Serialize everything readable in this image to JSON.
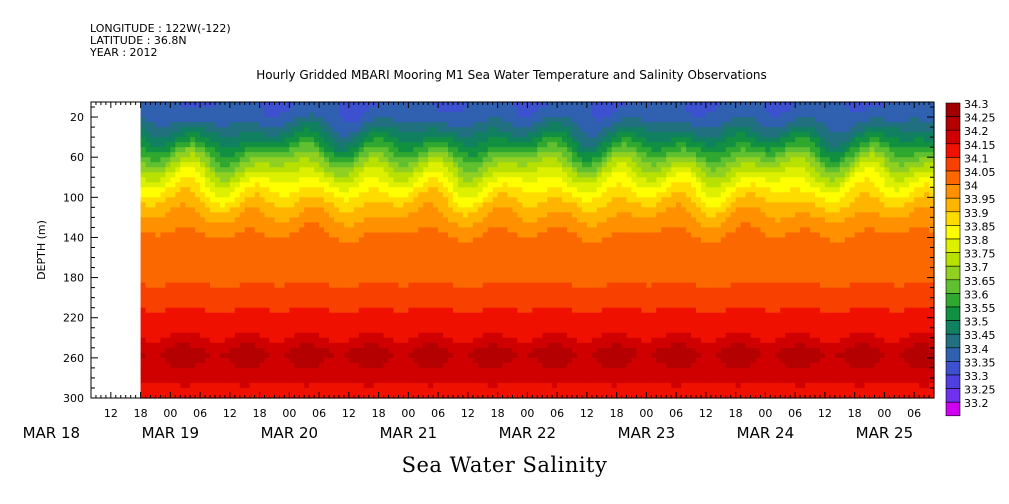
{
  "header": {
    "longitude": "LONGITUDE : 122W(-122)",
    "latitude": "LATITUDE : 36.8N",
    "year": "YEAR : 2012"
  },
  "chart_data": {
    "type": "heatmap",
    "title": "Hourly Gridded MBARI Mooring M1 Sea Water Temperature and Salinity Observations",
    "bottom_title": "Sea Water Salinity",
    "ylabel": "DEPTH (m)",
    "y_ticks": [
      "20",
      "60",
      "100",
      "140",
      "180",
      "220",
      "260",
      "300"
    ],
    "y_tick_values": [
      20,
      60,
      100,
      140,
      180,
      220,
      260,
      300
    ],
    "ylim": [
      300,
      5
    ],
    "x_hour_ticks": [
      "12",
      "18",
      "00",
      "06",
      "12",
      "18",
      "00",
      "06",
      "12",
      "18",
      "00",
      "06",
      "12",
      "18",
      "00",
      "06",
      "12",
      "18",
      "00",
      "06",
      "12",
      "18",
      "00",
      "06",
      "12",
      "18",
      "00",
      "06"
    ],
    "x_hour_values": [
      12,
      18,
      24,
      30,
      36,
      42,
      48,
      54,
      60,
      66,
      72,
      78,
      84,
      90,
      96,
      102,
      108,
      114,
      120,
      126,
      132,
      138,
      144,
      150,
      156,
      162,
      168,
      174
    ],
    "x_date_labels": [
      "MAR 18",
      "MAR 19",
      "MAR 20",
      "MAR 21",
      "MAR 22",
      "MAR 23",
      "MAR 24",
      "MAR 25"
    ],
    "x_date_values": [
      0,
      24,
      48,
      72,
      96,
      120,
      144,
      168
    ],
    "x_unit": "hours since MAR 18 00:00",
    "xlim": [
      8,
      178
    ],
    "data_start_hour": 18,
    "legend_levels": [
      "34.3",
      "34.25",
      "34.2",
      "34.15",
      "34.1",
      "34.05",
      "34",
      "33.95",
      "33.9",
      "33.85",
      "33.8",
      "33.75",
      "33.7",
      "33.65",
      "33.6",
      "33.55",
      "33.5",
      "33.45",
      "33.4",
      "33.35",
      "33.3",
      "33.25",
      "33.2"
    ],
    "legend_colors": [
      "#a00000",
      "#b40000",
      "#d00000",
      "#f01000",
      "#f84000",
      "#fc6800",
      "#ff9000",
      "#ffb400",
      "#ffdc00",
      "#ffff00",
      "#dcf000",
      "#b8e000",
      "#90d020",
      "#60c030",
      "#30a830",
      "#109040",
      "#108060",
      "#207080",
      "#3060b0",
      "#3c50d0",
      "#5040e0",
      "#7030f0",
      "#d000f0"
    ],
    "depth_profile": {
      "depths": [
        5,
        20,
        35,
        50,
        65,
        80,
        95,
        110,
        125,
        140,
        160,
        180,
        200,
        220,
        240,
        255,
        270,
        285,
        300
      ],
      "salinity": [
        33.4,
        33.42,
        33.5,
        33.6,
        33.72,
        33.82,
        33.9,
        33.97,
        34.02,
        34.06,
        34.08,
        34.09,
        34.12,
        34.17,
        34.2,
        34.27,
        34.24,
        34.2,
        34.18
      ]
    }
  }
}
